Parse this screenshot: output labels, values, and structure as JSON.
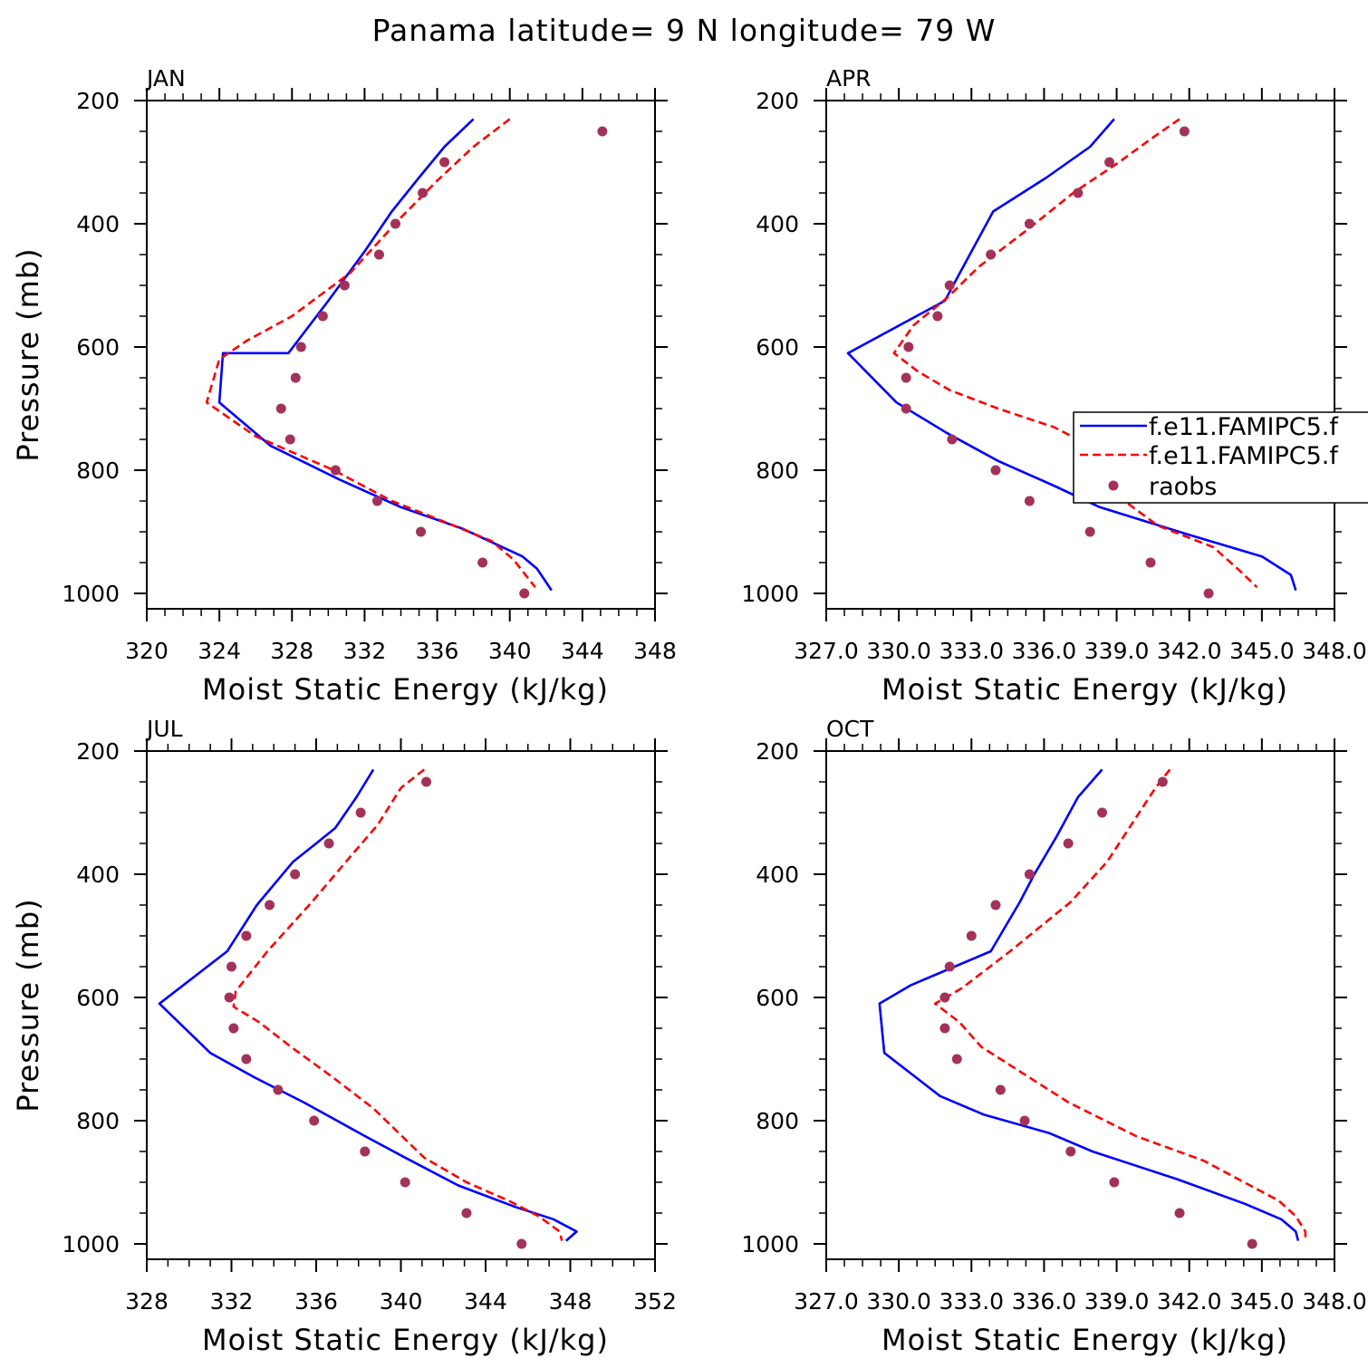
{
  "figure": {
    "title": "Panama  latitude= 9 N longitude= 79 W"
  },
  "colors": {
    "model1": "#0000ff",
    "model2": "#ff0000",
    "raobs": "#a3325a"
  },
  "legend": {
    "placement": "right edge of APR panel, cut off by image border",
    "entries": [
      "f.e11.FAMIPC5.f",
      "f.e11.FAMIPC5.f",
      "raobs"
    ]
  },
  "chart_data": [
    {
      "type": "line",
      "panel": "JAN",
      "title": "JAN",
      "xlabel": "Moist Static Energy (kJ/kg)",
      "ylabel": "Pressure (mb)",
      "xlim": [
        320,
        348
      ],
      "ylim": [
        1025,
        200
      ],
      "xticks": [
        "320",
        "324",
        "328",
        "332",
        "336",
        "340",
        "344",
        "348"
      ],
      "yticks": [
        "200",
        "400",
        "600",
        "800",
        "1000"
      ],
      "series": [
        {
          "name": "f.e11.FAMIPC5.f",
          "style": "solid",
          "color": "#0000ff",
          "points": [
            [
              338.0,
              230
            ],
            [
              336.4,
              275
            ],
            [
              335.0,
              325
            ],
            [
              333.5,
              380
            ],
            [
              332.0,
              445
            ],
            [
              330.0,
              525
            ],
            [
              327.8,
              610
            ],
            [
              324.2,
              610
            ],
            [
              324.0,
              690
            ],
            [
              326.8,
              760
            ],
            [
              330.6,
              815
            ],
            [
              334.0,
              860
            ],
            [
              337.4,
              895
            ],
            [
              340.7,
              940
            ],
            [
              341.5,
              960
            ],
            [
              342.3,
              995
            ]
          ]
        },
        {
          "name": "f.e11.FAMIPC5.f",
          "style": "dashed",
          "color": "#ff0000",
          "points": [
            [
              340.0,
              230
            ],
            [
              338.0,
              275
            ],
            [
              336.0,
              330
            ],
            [
              334.0,
              390
            ],
            [
              331.2,
              480
            ],
            [
              328.0,
              550
            ],
            [
              325.5,
              590
            ],
            [
              324.0,
              620
            ],
            [
              323.3,
              690
            ],
            [
              326.0,
              745
            ],
            [
              330.3,
              800
            ],
            [
              333.5,
              850
            ],
            [
              336.5,
              885
            ],
            [
              339.0,
              915
            ],
            [
              340.2,
              945
            ],
            [
              341.4,
              990
            ]
          ]
        },
        {
          "name": "raobs",
          "style": "dot",
          "color": "#a3325a",
          "points": [
            [
              345.1,
              250
            ],
            [
              336.4,
              300
            ],
            [
              335.2,
              350
            ],
            [
              333.7,
              400
            ],
            [
              332.8,
              450
            ],
            [
              330.9,
              500
            ],
            [
              329.7,
              550
            ],
            [
              328.5,
              600
            ],
            [
              328.2,
              650
            ],
            [
              327.4,
              700
            ],
            [
              327.9,
              750
            ],
            [
              330.4,
              800
            ],
            [
              332.7,
              850
            ],
            [
              335.1,
              900
            ],
            [
              338.5,
              950
            ],
            [
              340.8,
              1000
            ]
          ]
        }
      ]
    },
    {
      "type": "line",
      "panel": "APR",
      "title": "APR",
      "xlabel": "Moist Static Energy (kJ/kg)",
      "ylabel": "",
      "xlim": [
        327,
        348
      ],
      "ylim": [
        1025,
        200
      ],
      "xticks": [
        "327.0",
        "330.0",
        "333.0",
        "336.0",
        "339.0",
        "342.0",
        "345.0",
        "348.0"
      ],
      "yticks": [
        "200",
        "400",
        "600",
        "800",
        "1000"
      ],
      "series": [
        {
          "name": "f.e11.FAMIPC5.f",
          "style": "solid",
          "color": "#0000ff",
          "points": [
            [
              338.9,
              230
            ],
            [
              337.9,
              275
            ],
            [
              336.1,
              325
            ],
            [
              333.9,
              380
            ],
            [
              333.0,
              445
            ],
            [
              331.9,
              525
            ],
            [
              327.9,
              610
            ],
            [
              329.9,
              690
            ],
            [
              332.0,
              740
            ],
            [
              334.1,
              785
            ],
            [
              336.4,
              825
            ],
            [
              338.3,
              860
            ],
            [
              342.0,
              905
            ],
            [
              345.0,
              940
            ],
            [
              346.2,
              970
            ],
            [
              346.4,
              995
            ]
          ]
        },
        {
          "name": "f.e11.FAMIPC5.f",
          "style": "dashed",
          "color": "#ff0000",
          "points": [
            [
              341.6,
              230
            ],
            [
              340.5,
              260
            ],
            [
              339.1,
              300
            ],
            [
              337.2,
              350
            ],
            [
              335.3,
              410
            ],
            [
              333.3,
              470
            ],
            [
              332.0,
              520
            ],
            [
              330.6,
              565
            ],
            [
              329.8,
              610
            ],
            [
              330.8,
              640
            ],
            [
              332.1,
              670
            ],
            [
              334.1,
              700
            ],
            [
              336.4,
              730
            ],
            [
              337.9,
              760
            ],
            [
              338.5,
              810
            ],
            [
              339.5,
              855
            ],
            [
              340.7,
              890
            ],
            [
              343.0,
              925
            ],
            [
              344.0,
              960
            ],
            [
              344.8,
              990
            ]
          ]
        },
        {
          "name": "raobs",
          "style": "dot",
          "color": "#a3325a",
          "points": [
            [
              341.8,
              250
            ],
            [
              338.7,
              300
            ],
            [
              337.4,
              350
            ],
            [
              335.4,
              400
            ],
            [
              333.8,
              450
            ],
            [
              332.1,
              500
            ],
            [
              331.6,
              550
            ],
            [
              330.4,
              600
            ],
            [
              330.3,
              650
            ],
            [
              330.3,
              700
            ],
            [
              332.2,
              750
            ],
            [
              334.0,
              800
            ],
            [
              335.4,
              850
            ],
            [
              337.9,
              900
            ],
            [
              340.4,
              950
            ],
            [
              342.8,
              1000
            ]
          ]
        }
      ]
    },
    {
      "type": "line",
      "panel": "JUL",
      "title": "JUL",
      "xlabel": "Moist Static Energy (kJ/kg)",
      "ylabel": "Pressure (mb)",
      "xlim": [
        328,
        352
      ],
      "ylim": [
        1025,
        200
      ],
      "xticks": [
        "328",
        "332",
        "336",
        "340",
        "344",
        "348",
        "352"
      ],
      "yticks": [
        "200",
        "400",
        "600",
        "800",
        "1000"
      ],
      "series": [
        {
          "name": "f.e11.FAMIPC5.f",
          "style": "solid",
          "color": "#0000ff",
          "points": [
            [
              338.7,
              230
            ],
            [
              337.9,
              275
            ],
            [
              336.9,
              325
            ],
            [
              336.0,
              350
            ],
            [
              334.9,
              380
            ],
            [
              333.2,
              450
            ],
            [
              331.8,
              525
            ],
            [
              328.6,
              610
            ],
            [
              331.0,
              690
            ],
            [
              333.1,
              730
            ],
            [
              335.4,
              770
            ],
            [
              338.3,
              825
            ],
            [
              340.2,
              860
            ],
            [
              342.7,
              905
            ],
            [
              345.4,
              940
            ],
            [
              347.2,
              960
            ],
            [
              348.3,
              980
            ],
            [
              347.8,
              995
            ]
          ]
        },
        {
          "name": "f.e11.FAMIPC5.f",
          "style": "dashed",
          "color": "#ff0000",
          "points": [
            [
              341.1,
              230
            ],
            [
              340.0,
              260
            ],
            [
              338.9,
              320
            ],
            [
              337.4,
              380
            ],
            [
              335.8,
              445
            ],
            [
              333.7,
              525
            ],
            [
              332.2,
              590
            ],
            [
              332.1,
              615
            ],
            [
              333.3,
              640
            ],
            [
              334.8,
              680
            ],
            [
              336.8,
              730
            ],
            [
              338.7,
              780
            ],
            [
              341.1,
              860
            ],
            [
              343.1,
              900
            ],
            [
              345.1,
              930
            ],
            [
              346.5,
              955
            ],
            [
              347.5,
              980
            ],
            [
              347.6,
              995
            ]
          ]
        },
        {
          "name": "raobs",
          "style": "dot",
          "color": "#a3325a",
          "points": [
            [
              341.2,
              250
            ],
            [
              338.1,
              300
            ],
            [
              336.6,
              350
            ],
            [
              335.0,
              400
            ],
            [
              333.8,
              450
            ],
            [
              332.7,
              500
            ],
            [
              332.0,
              550
            ],
            [
              331.9,
              600
            ],
            [
              332.1,
              650
            ],
            [
              332.7,
              700
            ],
            [
              334.2,
              750
            ],
            [
              335.9,
              800
            ],
            [
              338.3,
              850
            ],
            [
              340.2,
              900
            ],
            [
              343.1,
              950
            ],
            [
              345.7,
              1000
            ]
          ]
        }
      ]
    },
    {
      "type": "line",
      "panel": "OCT",
      "title": "OCT",
      "xlabel": "Moist Static Energy (kJ/kg)",
      "ylabel": "",
      "xlim": [
        327,
        348
      ],
      "ylim": [
        1025,
        200
      ],
      "xticks": [
        "327.0",
        "330.0",
        "333.0",
        "336.0",
        "339.0",
        "342.0",
        "345.0",
        "348.0"
      ],
      "yticks": [
        "200",
        "400",
        "600",
        "800",
        "1000"
      ],
      "series": [
        {
          "name": "f.e11.FAMIPC5.f",
          "style": "solid",
          "color": "#0000ff",
          "points": [
            [
              338.4,
              230
            ],
            [
              337.4,
              275
            ],
            [
              336.5,
              340
            ],
            [
              335.6,
              400
            ],
            [
              335.0,
              445
            ],
            [
              333.8,
              525
            ],
            [
              330.5,
              580
            ],
            [
              329.2,
              610
            ],
            [
              329.4,
              690
            ],
            [
              331.7,
              760
            ],
            [
              333.5,
              790
            ],
            [
              336.2,
              820
            ],
            [
              338.0,
              850
            ],
            [
              341.5,
              895
            ],
            [
              344.3,
              935
            ],
            [
              345.8,
              960
            ],
            [
              346.4,
              980
            ],
            [
              346.5,
              995
            ]
          ]
        },
        {
          "name": "f.e11.FAMIPC5.f",
          "style": "dashed",
          "color": "#ff0000",
          "points": [
            [
              341.2,
              230
            ],
            [
              340.6,
              260
            ],
            [
              339.6,
              320
            ],
            [
              338.6,
              380
            ],
            [
              337.1,
              445
            ],
            [
              334.6,
              525
            ],
            [
              332.6,
              585
            ],
            [
              331.5,
              610
            ],
            [
              332.5,
              640
            ],
            [
              333.4,
              680
            ],
            [
              335.0,
              720
            ],
            [
              337.0,
              770
            ],
            [
              339.8,
              825
            ],
            [
              342.6,
              865
            ],
            [
              345.7,
              930
            ],
            [
              346.4,
              955
            ],
            [
              346.8,
              980
            ],
            [
              346.8,
              995
            ]
          ]
        },
        {
          "name": "raobs",
          "style": "dot",
          "color": "#a3325a",
          "points": [
            [
              340.9,
              250
            ],
            [
              338.4,
              300
            ],
            [
              337.0,
              350
            ],
            [
              335.4,
              400
            ],
            [
              334.0,
              450
            ],
            [
              333.0,
              500
            ],
            [
              332.1,
              550
            ],
            [
              331.9,
              600
            ],
            [
              331.9,
              650
            ],
            [
              332.4,
              700
            ],
            [
              334.2,
              750
            ],
            [
              335.2,
              800
            ],
            [
              337.1,
              850
            ],
            [
              338.9,
              900
            ],
            [
              341.6,
              950
            ],
            [
              344.6,
              1000
            ]
          ]
        }
      ]
    }
  ]
}
